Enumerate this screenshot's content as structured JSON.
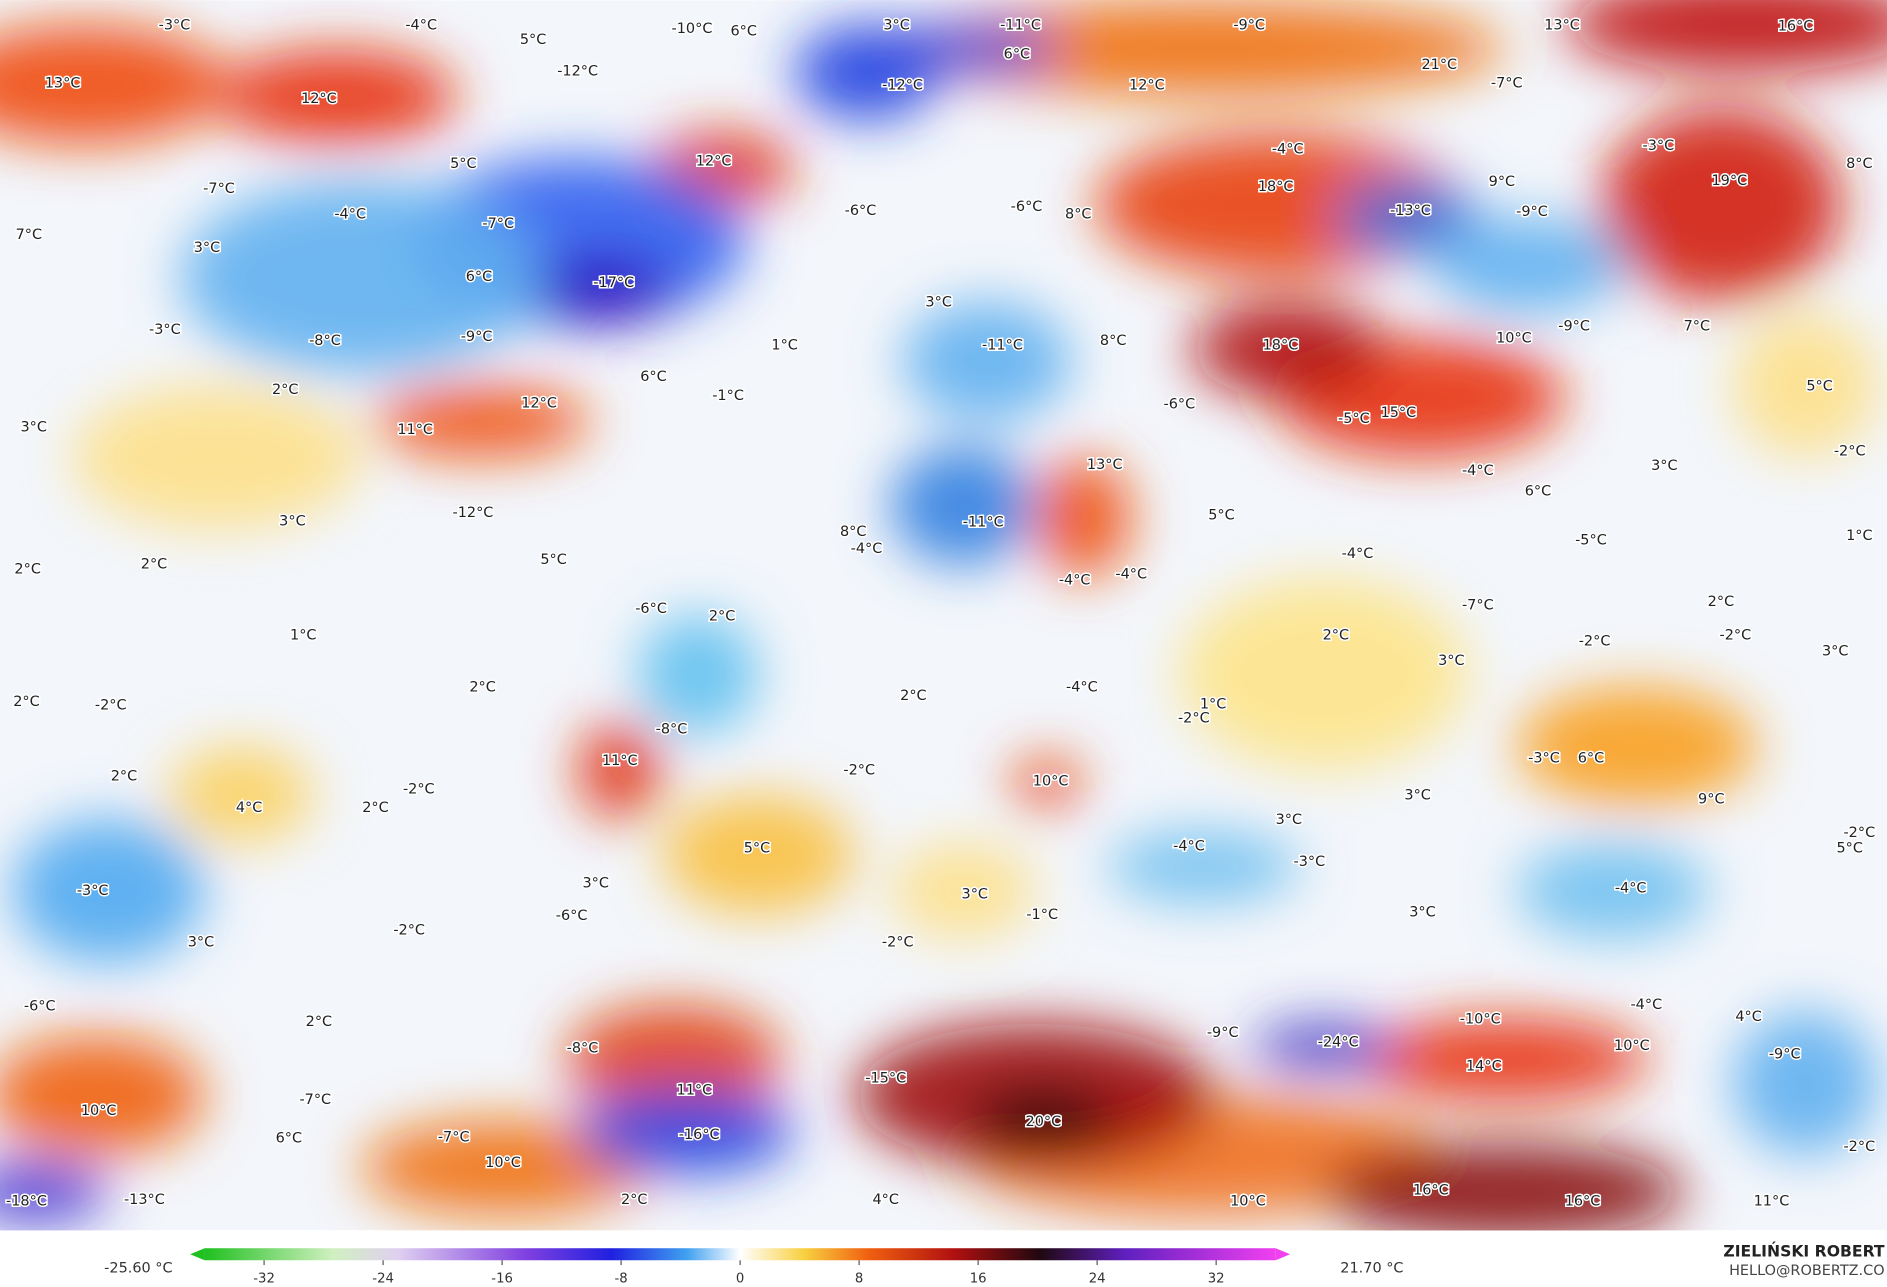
{
  "map": {
    "labels": [
      "-3°C",
      "-4°C",
      "5°C",
      "-10°C",
      "6°C",
      "3°C",
      "-11°C",
      "-9°C",
      "13°C",
      "16°C",
      "13°C",
      "12°C",
      "-12°C",
      "-12°C",
      "6°C",
      "12°C",
      "21°C",
      "-7°C",
      "5°C",
      "12°C",
      "-4°C",
      "-3°C",
      "8°C",
      "-7°C",
      "18°C",
      "9°C",
      "19°C",
      "-4°C",
      "-7°C",
      "-6°C",
      "-6°C",
      "8°C",
      "-13°C",
      "-9°C",
      "7°C",
      "3°C",
      "6°C",
      "-17°C",
      "-3°C",
      "-8°C",
      "-9°C",
      "3°C",
      "1°C",
      "-11°C",
      "8°C",
      "18°C",
      "10°C",
      "-9°C",
      "7°C",
      "2°C",
      "6°C",
      "-1°C",
      "-6°C",
      "5°C",
      "3°C",
      "11°C",
      "12°C",
      "-5°C",
      "15°C",
      "13°C",
      "-4°C",
      "3°C",
      "-2°C",
      "3°C",
      "-12°C",
      "-11°C",
      "8°C",
      "-4°C",
      "5°C",
      "6°C",
      "2°C",
      "2°C",
      "5°C",
      "-4°C",
      "-5°C",
      "1°C",
      "-4°C",
      "-4°C",
      "-6°C",
      "2°C",
      "2°C",
      "-7°C",
      "1°C",
      "2°C",
      "-2°C",
      "-2°C",
      "3°C",
      "3°C",
      "2°C",
      "-2°C",
      "2°C",
      "2°C",
      "-4°C",
      "1°C",
      "-2°C",
      "-8°C",
      "-3°C",
      "6°C",
      "11°C",
      "-2°C",
      "2°C",
      "-2°C",
      "10°C",
      "9°C",
      "4°C",
      "2°C",
      "3°C",
      "3°C",
      "5°C",
      "-4°C",
      "-3°C",
      "-2°C",
      "5°C",
      "-3°C",
      "3°C",
      "3°C",
      "-4°C",
      "-6°C",
      "-1°C",
      "3°C",
      "-2°C",
      "3°C",
      "-2°C",
      "-6°C",
      "2°C",
      "-4°C",
      "4°C",
      "-8°C",
      "-9°C",
      "-24°C",
      "-10°C",
      "10°C",
      "-9°C",
      "14°C",
      "-15°C",
      "11°C",
      "-7°C",
      "10°C",
      "20°C",
      "-16°C",
      "-7°C",
      "6°C",
      "-2°C",
      "10°C",
      "16°C",
      "-18°C",
      "-13°C",
      "2°C",
      "4°C",
      "10°C",
      "16°C",
      "11°C"
    ]
  },
  "colorbar": {
    "min_label": "-25.60 °C",
    "max_label": "21.70 °C",
    "range": [
      -36,
      36
    ],
    "ticks": [
      -32,
      -24,
      -16,
      -8,
      0,
      8,
      16,
      24,
      32
    ]
  },
  "credit": {
    "author": "ZIELIŃSKI ROBERT",
    "email": "HELLO@ROBERTZ.CO"
  }
}
